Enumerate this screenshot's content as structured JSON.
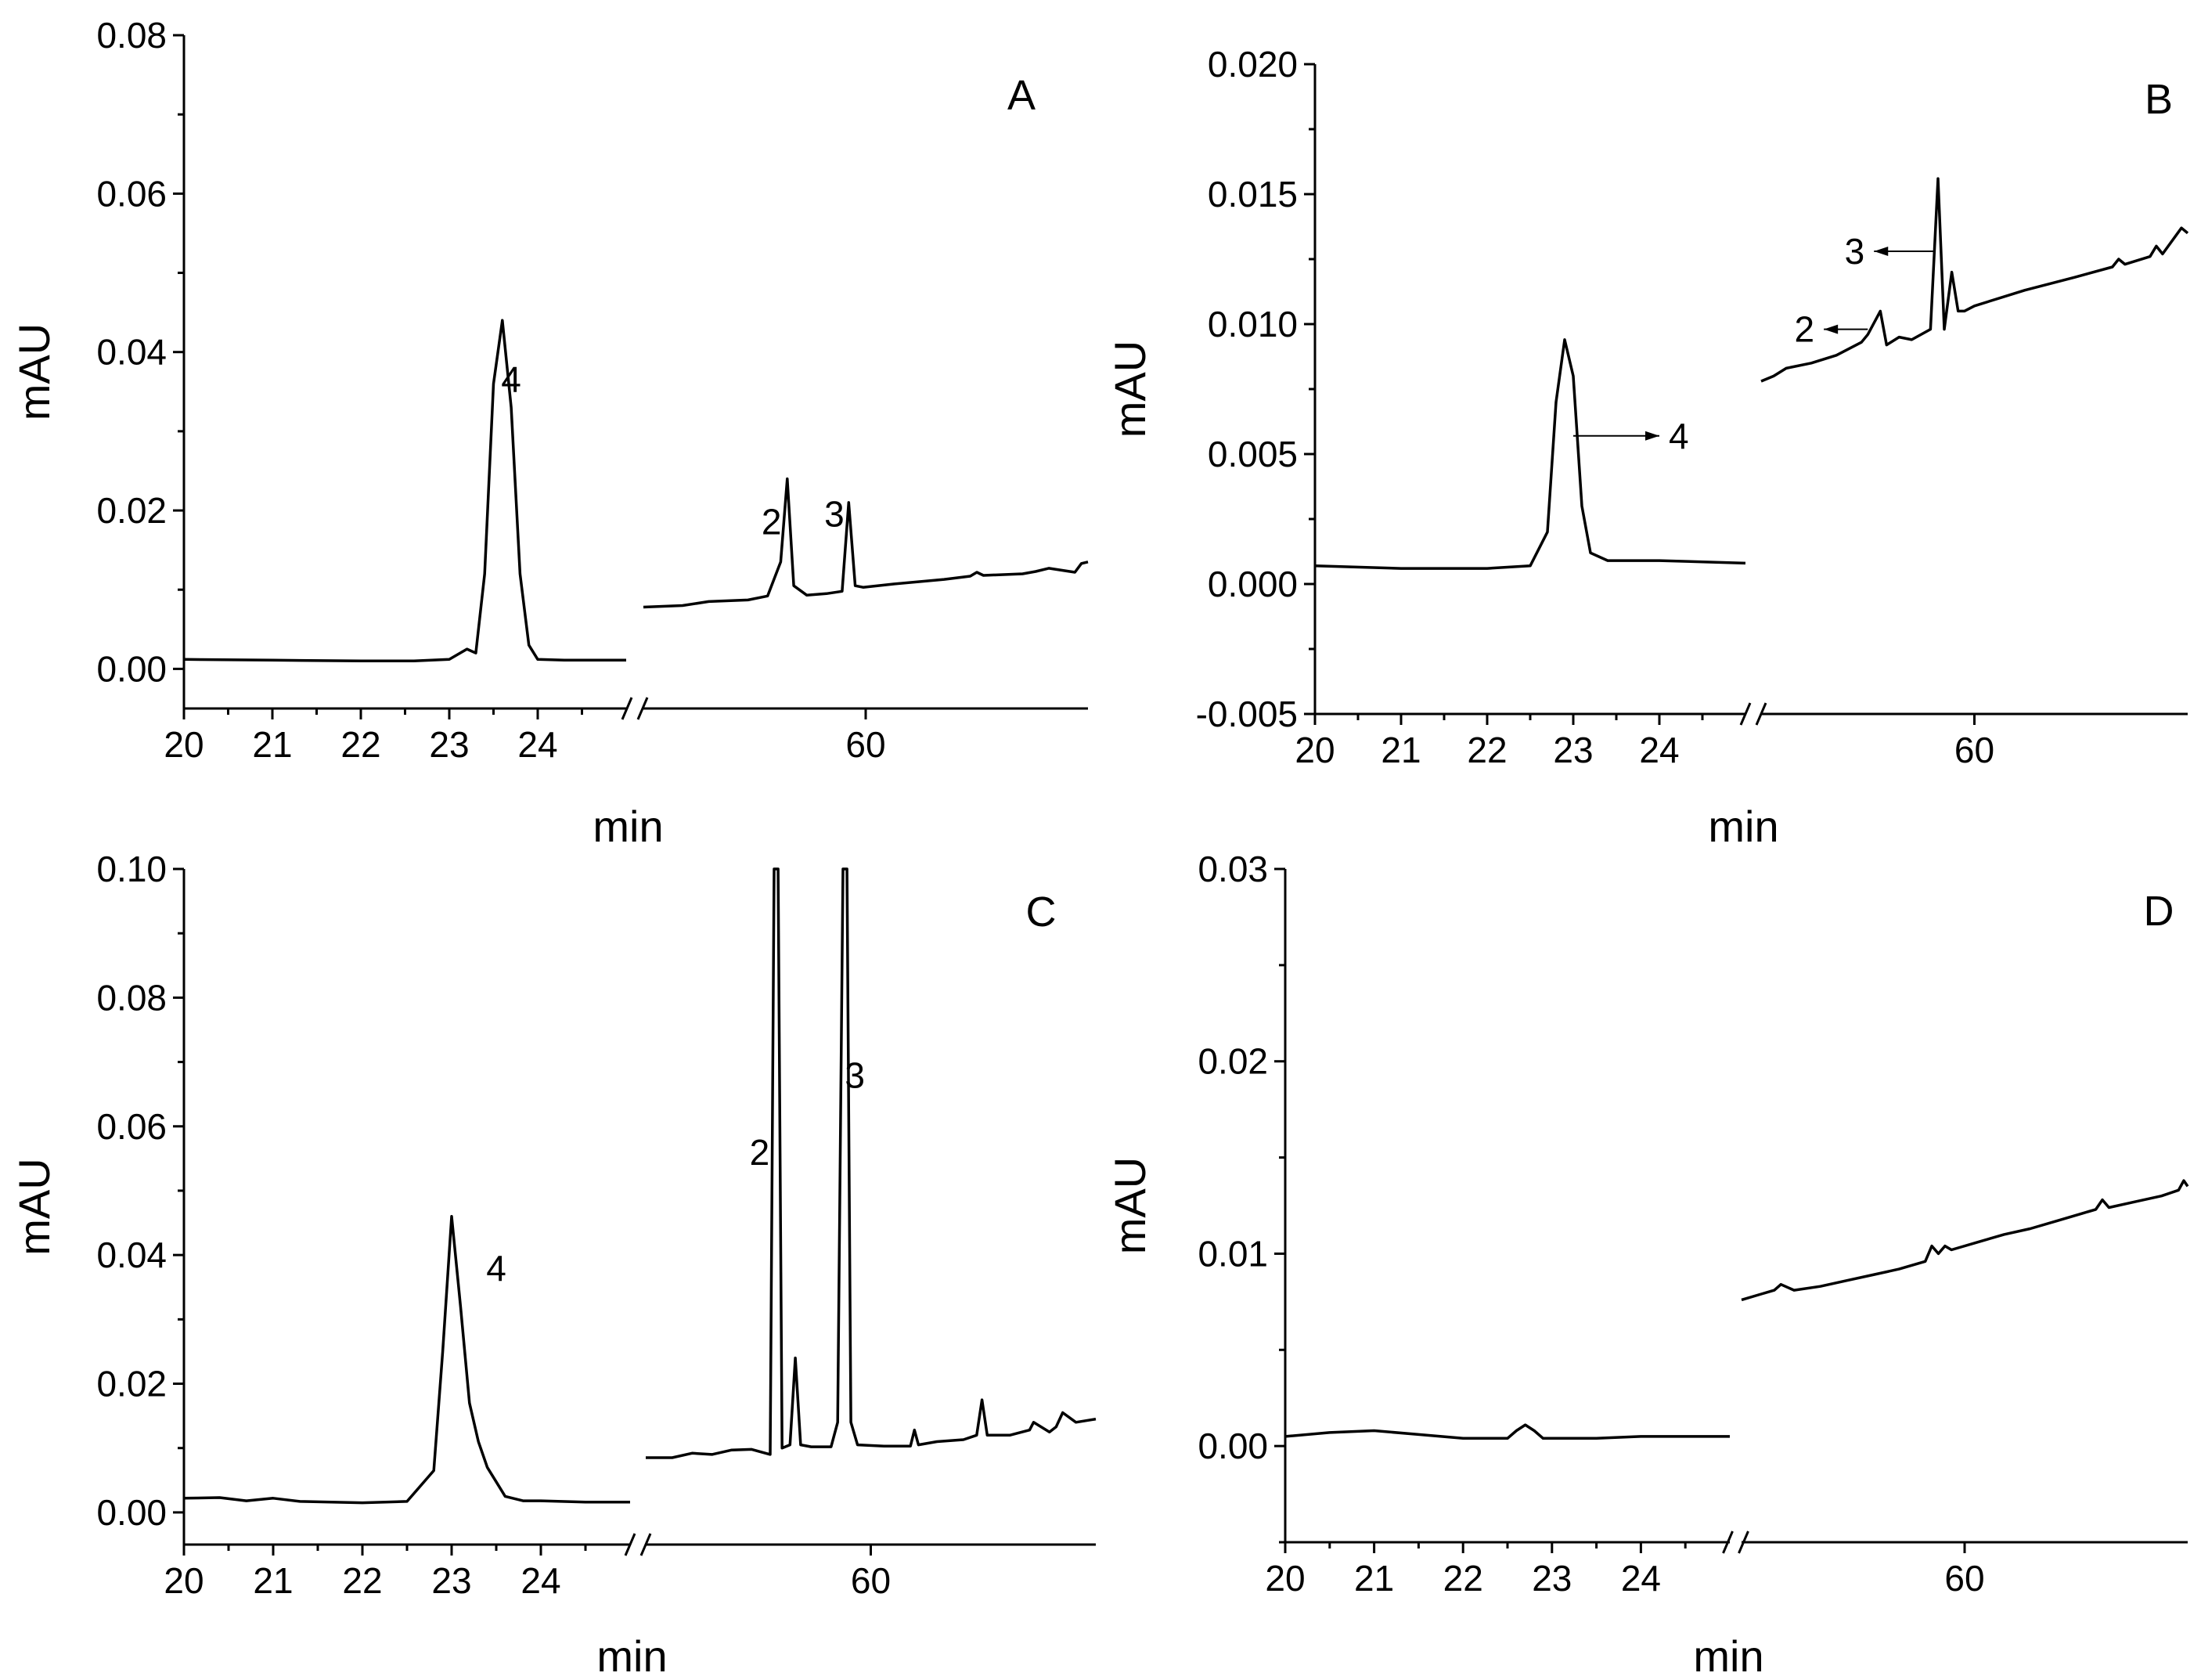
{
  "figure": {
    "accent_color": "#000000",
    "break_symbol": "//"
  },
  "chart_data": [
    {
      "type": "line",
      "panel_label": "A",
      "xlabel": "min",
      "ylabel": "mAU",
      "ylim": [
        -0.005,
        0.08
      ],
      "yticks": [
        "0.00",
        "0.02",
        "0.04",
        "0.06",
        "0.08"
      ],
      "ytick_values": [
        0.0,
        0.02,
        0.04,
        0.06,
        0.08
      ],
      "segment1": {
        "xlim": [
          20,
          25.0
        ],
        "xticks": [
          "20",
          "21",
          "22",
          "23",
          "24"
        ],
        "xtick_values": [
          20,
          21,
          22,
          23,
          24
        ]
      },
      "segment2": {
        "xlim": [
          43,
          77
        ],
        "xticks": [
          "60"
        ],
        "xtick_values": [
          60
        ]
      },
      "series": [
        {
          "name": "segment1",
          "x": [
            20.0,
            21.0,
            22.0,
            22.6,
            23.0,
            23.2,
            23.3,
            23.4,
            23.5,
            23.6,
            23.7,
            23.8,
            23.9,
            24.0,
            24.3,
            25.0
          ],
          "y": [
            0.0012,
            0.0011,
            0.001,
            0.001,
            0.0012,
            0.0025,
            0.002,
            0.012,
            0.036,
            0.044,
            0.033,
            0.012,
            0.003,
            0.0012,
            0.0011,
            0.0011
          ]
        },
        {
          "name": "segment2",
          "x": [
            43.0,
            46.0,
            48.0,
            51.0,
            52.5,
            53.5,
            54.0,
            54.5,
            55.5,
            57.0,
            58.2,
            58.7,
            59.2,
            59.8,
            62,
            66,
            68,
            68.5,
            69,
            72,
            73,
            74,
            76,
            76.5,
            77
          ],
          "y": [
            0.0078,
            0.008,
            0.0085,
            0.0087,
            0.0092,
            0.0135,
            0.024,
            0.0105,
            0.0093,
            0.0095,
            0.0098,
            0.021,
            0.0105,
            0.0103,
            0.0107,
            0.0113,
            0.0117,
            0.0122,
            0.0118,
            0.012,
            0.0123,
            0.0127,
            0.0122,
            0.0133,
            0.0135
          ]
        }
      ],
      "annotations": [
        {
          "text": "4",
          "x": 23.7,
          "y": 0.035,
          "segment": 1
        },
        {
          "text": "2",
          "x": 52.8,
          "y": 0.017,
          "segment": 2
        },
        {
          "text": "3",
          "x": 57.6,
          "y": 0.018,
          "segment": 2
        }
      ]
    },
    {
      "type": "line",
      "panel_label": "B",
      "xlabel": "min",
      "ylabel": "mAU",
      "ylim": [
        -0.005,
        0.02
      ],
      "yticks": [
        "-0.005",
        "0.000",
        "0.005",
        "0.010",
        "0.015",
        "0.020"
      ],
      "ytick_values": [
        -0.005,
        0.0,
        0.005,
        0.01,
        0.015,
        0.02
      ],
      "segment1": {
        "xlim": [
          20,
          25.0
        ],
        "xticks": [
          "20",
          "21",
          "22",
          "23",
          "24"
        ],
        "xtick_values": [
          20,
          21,
          22,
          23,
          24
        ]
      },
      "segment2": {
        "xlim": [
          43,
          77
        ],
        "xticks": [
          "60"
        ],
        "xtick_values": [
          60
        ]
      },
      "series": [
        {
          "name": "segment1",
          "x": [
            20.0,
            21.0,
            22.0,
            22.5,
            22.7,
            22.8,
            22.9,
            23.0,
            23.1,
            23.2,
            23.4,
            24.0,
            25.0
          ],
          "y": [
            0.0007,
            0.0006,
            0.0006,
            0.0007,
            0.002,
            0.007,
            0.0094,
            0.008,
            0.003,
            0.0012,
            0.0009,
            0.0009,
            0.0008
          ]
        },
        {
          "name": "segment2",
          "x": [
            43.0,
            44.0,
            45.0,
            47.0,
            49.0,
            51.0,
            51.5,
            52.5,
            53.0,
            54,
            55,
            56.5,
            57.1,
            57.6,
            58.2,
            58.7,
            59.2,
            60,
            64,
            68,
            71,
            71.5,
            72,
            74,
            74.5,
            75,
            76.5,
            77
          ],
          "y": [
            0.0078,
            0.008,
            0.0083,
            0.0085,
            0.0088,
            0.0093,
            0.0096,
            0.0105,
            0.0092,
            0.0095,
            0.0094,
            0.0098,
            0.0156,
            0.0098,
            0.012,
            0.0105,
            0.0105,
            0.0107,
            0.0113,
            0.0118,
            0.0122,
            0.0125,
            0.0123,
            0.0126,
            0.013,
            0.0127,
            0.0137,
            0.0135
          ]
        }
      ],
      "annotations": [
        {
          "text": "4",
          "x": 23.0,
          "y": 0.0057,
          "arrow_to": [
            24.0,
            0.0057
          ],
          "segment": 1
        },
        {
          "text": "2",
          "x": 51.5,
          "y": 0.0098,
          "arrow_to": [
            48.0,
            0.0098
          ],
          "segment": 2
        },
        {
          "text": "3",
          "x": 56.9,
          "y": 0.0128,
          "arrow_to": [
            52.0,
            0.0128
          ],
          "segment": 2
        }
      ]
    },
    {
      "type": "line",
      "panel_label": "C",
      "xlabel": "min",
      "ylabel": "mAU",
      "ylim": [
        -0.005,
        0.1
      ],
      "yticks": [
        "0.00",
        "0.02",
        "0.04",
        "0.06",
        "0.08",
        "0.10"
      ],
      "ytick_values": [
        0.0,
        0.02,
        0.04,
        0.06,
        0.08,
        0.1
      ],
      "segment1": {
        "xlim": [
          20,
          25.0
        ],
        "xticks": [
          "20",
          "21",
          "22",
          "23",
          "24"
        ],
        "xtick_values": [
          20,
          21,
          22,
          23,
          24
        ]
      },
      "segment2": {
        "xlim": [
          43,
          77
        ],
        "xticks": [
          "60"
        ],
        "xtick_values": [
          60
        ]
      },
      "series": [
        {
          "name": "segment1",
          "x": [
            20.0,
            20.4,
            20.7,
            21.0,
            21.3,
            22.0,
            22.5,
            22.8,
            22.9,
            23.0,
            23.1,
            23.2,
            23.3,
            23.4,
            23.6,
            23.8,
            24.0,
            24.5,
            25.0
          ],
          "y": [
            0.0022,
            0.0023,
            0.0018,
            0.0022,
            0.0017,
            0.0015,
            0.0017,
            0.0065,
            0.025,
            0.046,
            0.032,
            0.017,
            0.011,
            0.007,
            0.0025,
            0.0018,
            0.0018,
            0.0016,
            0.0016
          ]
        },
        {
          "name": "segment2",
          "x": [
            43.0,
            45.0,
            46.5,
            48.0,
            49.5,
            51.0,
            52.4,
            52.7,
            53.0,
            53.3,
            53.9,
            54.3,
            54.7,
            55.5,
            57.0,
            57.5,
            57.9,
            58.2,
            58.5,
            59.0,
            61.0,
            63.0,
            63.3,
            63.6,
            65.0,
            67.0,
            68.0,
            68.4,
            68.8,
            70.5,
            72.0,
            72.3,
            73.5,
            74.0,
            74.5,
            75.5,
            77.0
          ],
          "y": [
            0.0085,
            0.0085,
            0.0092,
            0.009,
            0.0097,
            0.0098,
            0.009,
            0.1,
            0.1,
            0.01,
            0.0105,
            0.024,
            0.0105,
            0.0102,
            0.0102,
            0.014,
            0.1,
            0.1,
            0.014,
            0.0105,
            0.0103,
            0.0103,
            0.0128,
            0.0105,
            0.011,
            0.0113,
            0.012,
            0.0175,
            0.012,
            0.012,
            0.0128,
            0.014,
            0.0125,
            0.0133,
            0.0155,
            0.014,
            0.0145
          ]
        }
      ],
      "annotations": [
        {
          "text": "4",
          "x": 23.5,
          "y": 0.036,
          "segment": 1
        },
        {
          "text": "2",
          "x": 51.6,
          "y": 0.054,
          "segment": 2
        },
        {
          "text": "3",
          "x": 58.8,
          "y": 0.066,
          "segment": 2
        }
      ]
    },
    {
      "type": "line",
      "panel_label": "D",
      "xlabel": "min",
      "ylabel": "mAU",
      "ylim": [
        -0.005,
        0.03
      ],
      "yticks": [
        "0.00",
        "0.01",
        "0.02",
        "0.03"
      ],
      "ytick_values": [
        0.0,
        0.01,
        0.02,
        0.03
      ],
      "segment1": {
        "xlim": [
          20,
          25.0
        ],
        "xticks": [
          "20",
          "21",
          "22",
          "23",
          "24"
        ],
        "xtick_values": [
          20,
          21,
          22,
          23,
          24
        ]
      },
      "segment2": {
        "xlim": [
          43,
          77
        ],
        "xticks": [
          "60"
        ],
        "xtick_values": [
          60
        ]
      },
      "series": [
        {
          "name": "segment1",
          "x": [
            20.0,
            20.5,
            21.0,
            21.5,
            22.0,
            22.5,
            22.6,
            22.7,
            22.8,
            22.9,
            23.0,
            23.5,
            24.0,
            24.5,
            25.0
          ],
          "y": [
            0.0005,
            0.0007,
            0.0008,
            0.0006,
            0.0004,
            0.0004,
            0.0008,
            0.0011,
            0.0008,
            0.0004,
            0.0004,
            0.0004,
            0.0005,
            0.0005,
            0.0005
          ]
        },
        {
          "name": "segment2",
          "x": [
            43.0,
            44.5,
            45.5,
            46.0,
            47.0,
            49.0,
            51.0,
            53.0,
            55.0,
            57.0,
            57.5,
            58.0,
            58.5,
            59.0,
            61.0,
            63.0,
            65.0,
            67.0,
            69.0,
            70.0,
            70.5,
            71.0,
            73.0,
            75.0,
            76.3,
            76.7,
            77.0
          ],
          "y": [
            0.0076,
            0.0079,
            0.0081,
            0.0084,
            0.0081,
            0.0083,
            0.0086,
            0.0089,
            0.0092,
            0.0096,
            0.0104,
            0.01,
            0.0104,
            0.0102,
            0.0106,
            0.011,
            0.0113,
            0.0117,
            0.0121,
            0.0123,
            0.0128,
            0.0124,
            0.0127,
            0.013,
            0.0133,
            0.0138,
            0.0135
          ]
        }
      ],
      "annotations": []
    }
  ]
}
